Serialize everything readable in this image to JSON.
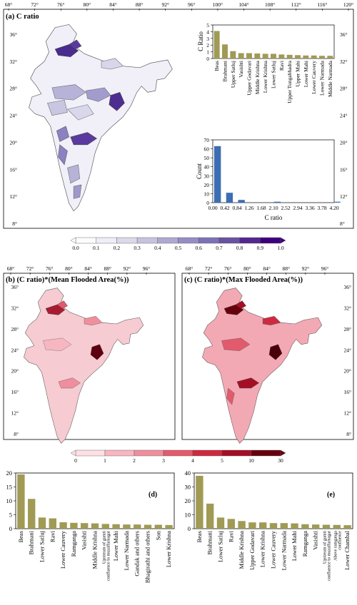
{
  "panel_a": {
    "title": "(a) C ratio",
    "lon_ticks": [
      "68°",
      "72°",
      "76°",
      "80°",
      "84°",
      "88°",
      "92°",
      "96°",
      "100°",
      "104°",
      "108°",
      "112°",
      "116°",
      "120°"
    ],
    "lat_ticks": [
      "36°",
      "32°",
      "28°",
      "24°",
      "20°",
      "16°",
      "12°",
      "8°"
    ],
    "colors": {
      "low": "#f4f2fa",
      "mid": "#8e85c3",
      "high": "#3f007d"
    }
  },
  "colorbar_a": {
    "labels": [
      "0.0",
      "0.1",
      "0.2",
      "0.3",
      "0.4",
      "0.5",
      "0.6",
      "0.7",
      "0.8",
      "0.9",
      "1.0"
    ],
    "colors": [
      "#fcfbfd",
      "#efedf5",
      "#dadaeb",
      "#c6c3e0",
      "#aea9d2",
      "#958ec4",
      "#7d72b5",
      "#6a51a3",
      "#54278f",
      "#3f007d"
    ]
  },
  "panel_b": {
    "title": "(b) (C ratio)*(Mean Flooded Area(%))",
    "lon_ticks": [
      "68°",
      "72°",
      "76°",
      "80°",
      "84°",
      "88°",
      "92°",
      "96°"
    ],
    "lat_ticks": [
      "36°",
      "32°",
      "28°",
      "24°",
      "20°",
      "16°",
      "12°",
      "8°"
    ]
  },
  "panel_c": {
    "title": "(c) (C ratio)*(Max Flooded Area(%))",
    "lon_ticks": [
      "68°",
      "72°",
      "76°",
      "80°",
      "84°",
      "88°",
      "92°",
      "96°"
    ],
    "lat_ticks": [
      "36°",
      "32°",
      "28°",
      "24°",
      "20°",
      "16°",
      "12°",
      "8°"
    ]
  },
  "colorbar_b": {
    "labels": [
      "0",
      "1",
      "2",
      "3",
      "4",
      "5",
      "10",
      "30"
    ],
    "colors": [
      "#fde0e4",
      "#f7b6c0",
      "#ef8f9d",
      "#e25a6c",
      "#cc2a40",
      "#a50f26",
      "#67000d"
    ]
  },
  "chart_data": [
    {
      "type": "bar",
      "panel": "a-inset-top",
      "categories": [
        "Beas",
        "Brahmani",
        "Upper Satluj",
        "Vasishti",
        "Upper Godavari",
        "Middle Krishna",
        "Lower Krishna",
        "Lower Satluj",
        "Ravi",
        "Upper Tungabhadra",
        "Upper Mahi",
        "Lower Mahi",
        "Lower Cauvery",
        "Lower Narmada",
        "Middle Narmada"
      ],
      "values": [
        4.1,
        2.1,
        1.1,
        0.8,
        0.8,
        0.75,
        0.7,
        0.7,
        0.6,
        0.55,
        0.5,
        0.45,
        0.45,
        0.4,
        0.4
      ],
      "ylabel": "C Ratio",
      "yticks": [
        0,
        1,
        2,
        3,
        4,
        5
      ],
      "ylim": [
        0,
        5
      ],
      "color": "#a09a55"
    },
    {
      "type": "bar",
      "panel": "a-inset-bottom",
      "categories": [
        "0.00",
        "0.42",
        "0.84",
        "1.26",
        "1.68",
        "2.10",
        "2.52",
        "2.94",
        "3.36",
        "3.78",
        "4.20"
      ],
      "values": [
        63,
        11,
        3,
        0,
        0,
        1,
        0,
        0,
        0,
        0,
        1
      ],
      "ylabel": "Count",
      "xlabel": "C ratio",
      "yticks": [
        0,
        10,
        20,
        30,
        40,
        50,
        60,
        70
      ],
      "ylim": [
        0,
        70
      ],
      "color": "#3b6eb4"
    },
    {
      "type": "bar",
      "panel": "d",
      "label": "(d)",
      "categories": [
        "Beas",
        "Brahmani",
        "Lower Satluj",
        "Ravi",
        "Lower Cauvery",
        "Ramganga",
        "Vasishti",
        "Middle Krishna",
        "Upstream of gumti confluence to muzaffarnagar",
        "Lower Mahi",
        "Lower Narmada",
        "Gandak and others",
        "Bhagirathi and others",
        "Son",
        "Lower Krishna"
      ],
      "values": [
        19.5,
        10.7,
        4.0,
        3.7,
        2.3,
        2.1,
        2.0,
        1.9,
        1.7,
        1.6,
        1.5,
        1.5,
        1.4,
        1.4,
        1.3
      ],
      "yticks": [
        0,
        5,
        10,
        15,
        20
      ],
      "ylim": [
        0,
        20
      ],
      "color": "#a09a55"
    },
    {
      "type": "bar",
      "panel": "e",
      "label": "(e)",
      "categories": [
        "Beas",
        "Brahmani",
        "Lower Satluj",
        "Ravi",
        "Middle Krishna",
        "Upper Godavari",
        "Lower Krishna",
        "Lower Cauvery",
        "Lower Narmada",
        "Lower Mahi",
        "Ramganga",
        "Vasishti",
        "Upstream of gumti confluence to muzaffarnagar",
        "Above ramganga confluence",
        "Lower Chambal"
      ],
      "values": [
        38,
        18,
        8,
        7,
        5.5,
        4.5,
        4.5,
        4,
        4,
        3.8,
        3.2,
        3,
        2.8,
        2.7,
        2.5
      ],
      "yticks": [
        0,
        10,
        20,
        30,
        40
      ],
      "ylim": [
        0,
        40
      ],
      "color": "#a09a55"
    }
  ]
}
